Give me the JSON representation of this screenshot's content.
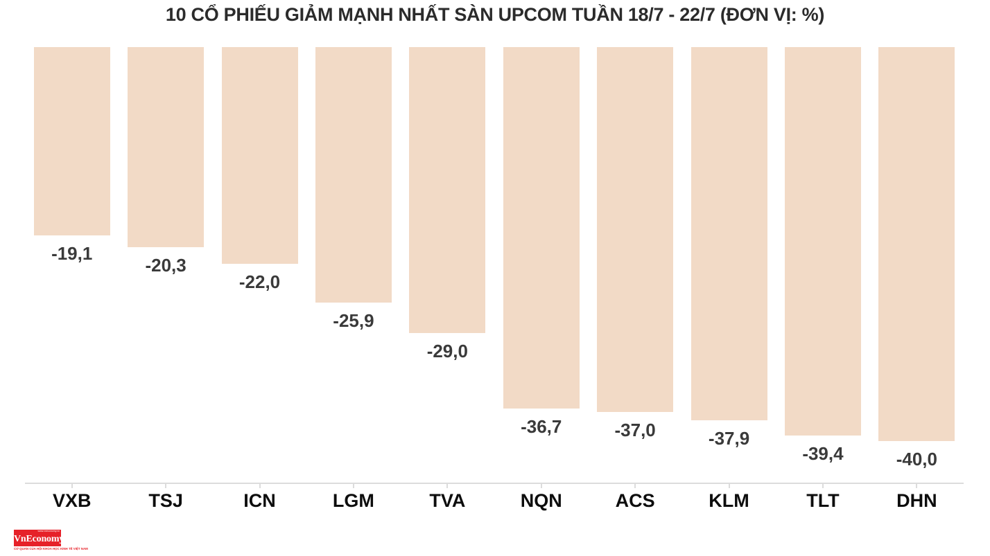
{
  "chart_data": {
    "type": "bar",
    "title": "10 CỔ PHIẾU GIẢM MẠNH NHẤT SÀN UPCOM TUẦN 18/7 - 22/7 (ĐƠN VỊ: %)",
    "orientation": "vertical-downward-from-zero-baseline",
    "categories": [
      "VXB",
      "TSJ",
      "ICN",
      "LGM",
      "TVA",
      "NQN",
      "ACS",
      "KLM",
      "TLT",
      "DHN"
    ],
    "values": [
      -19.1,
      -20.3,
      -22.0,
      -25.9,
      -29.0,
      -36.7,
      -37.0,
      -37.9,
      -39.4,
      -40.0
    ],
    "value_labels": [
      "-19,1",
      "-20,3",
      "-22,0",
      "-25,9",
      "-29,0",
      "-36,7",
      "-37,0",
      "-37,9",
      "-39,4",
      "-40,0"
    ],
    "unit": "%",
    "ylim": [
      -44.2,
      0
    ],
    "grid": false,
    "legend": "none",
    "colors": {
      "bar_fill": "#f2dac6",
      "axis_line": "#dcdcdc",
      "title_text": "#2b2b2b",
      "value_label_text": "#3a3a3a",
      "category_label_text": "#0d0d0d",
      "background": "#ffffff"
    }
  },
  "logo": {
    "text": "VnEconomy",
    "tagline_top": "www.vneconomy.vn",
    "tagline_bottom": "CƠ QUAN CỦA HỘI KHOA HỌC KINH TẾ VIỆT NAM",
    "box_color": "#e62129",
    "text_color": "#ffffff",
    "tagline_color": "#e62129"
  }
}
